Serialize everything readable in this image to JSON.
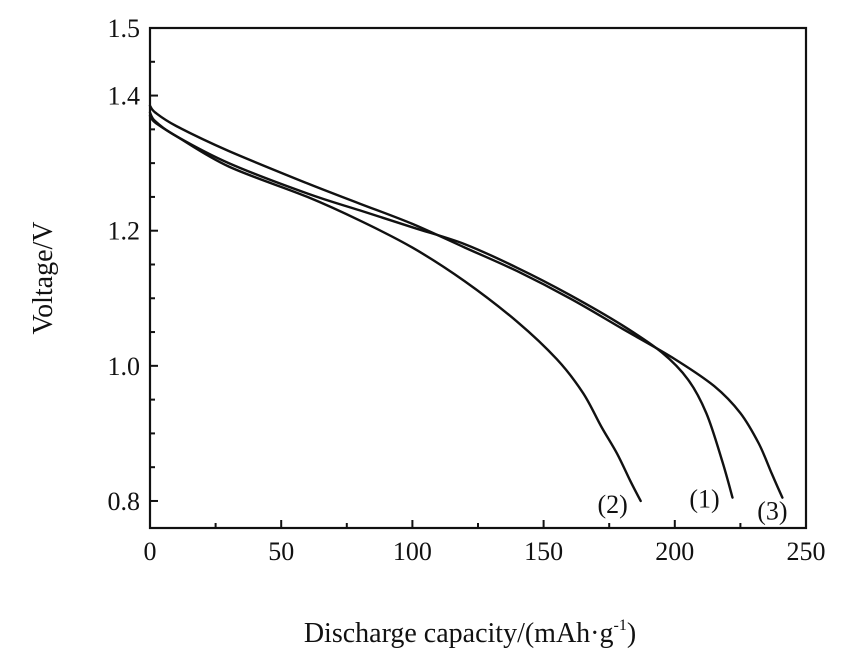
{
  "chart_data": {
    "type": "line",
    "xlabel_main": "Discharge capacity/(mAh·g",
    "xlabel_sup": "-1",
    "xlabel_end": ")",
    "ylabel": "Voltage/V",
    "xlim": [
      0,
      250
    ],
    "ylim": [
      0.76,
      1.5
    ],
    "xticks": [
      0,
      50,
      100,
      150,
      200,
      250
    ],
    "xtick_labels": [
      "0",
      "50",
      "100",
      "150",
      "200",
      "250"
    ],
    "yticks": [
      0.8,
      1.0,
      1.2,
      1.4,
      1.5
    ],
    "ytick_labels": [
      "0.8",
      "1.0",
      "1.2",
      "1.4",
      "1.5"
    ],
    "series": [
      {
        "name": "(1)",
        "x": [
          0,
          2,
          10,
          30,
          60,
          80,
          100,
          120,
          140,
          160,
          180,
          195,
          205,
          212,
          218,
          222
        ],
        "y": [
          1.375,
          1.362,
          1.34,
          1.3,
          1.255,
          1.23,
          1.205,
          1.18,
          1.145,
          1.105,
          1.06,
          1.02,
          0.98,
          0.93,
          0.86,
          0.805
        ]
      },
      {
        "name": "(2)",
        "x": [
          0,
          2,
          10,
          30,
          60,
          80,
          100,
          120,
          140,
          155,
          165,
          172,
          178,
          183,
          187
        ],
        "y": [
          1.37,
          1.36,
          1.34,
          1.295,
          1.25,
          1.215,
          1.175,
          1.125,
          1.065,
          1.01,
          0.96,
          0.91,
          0.87,
          0.83,
          0.8
        ]
      },
      {
        "name": "(3)",
        "x": [
          0,
          2,
          10,
          30,
          60,
          80,
          100,
          120,
          140,
          160,
          180,
          200,
          215,
          225,
          232,
          237,
          241
        ],
        "y": [
          1.385,
          1.375,
          1.355,
          1.318,
          1.27,
          1.24,
          1.21,
          1.175,
          1.14,
          1.1,
          1.055,
          1.01,
          0.97,
          0.93,
          0.885,
          0.84,
          0.805
        ]
      }
    ],
    "grid": false,
    "legend": "inline-labels"
  }
}
